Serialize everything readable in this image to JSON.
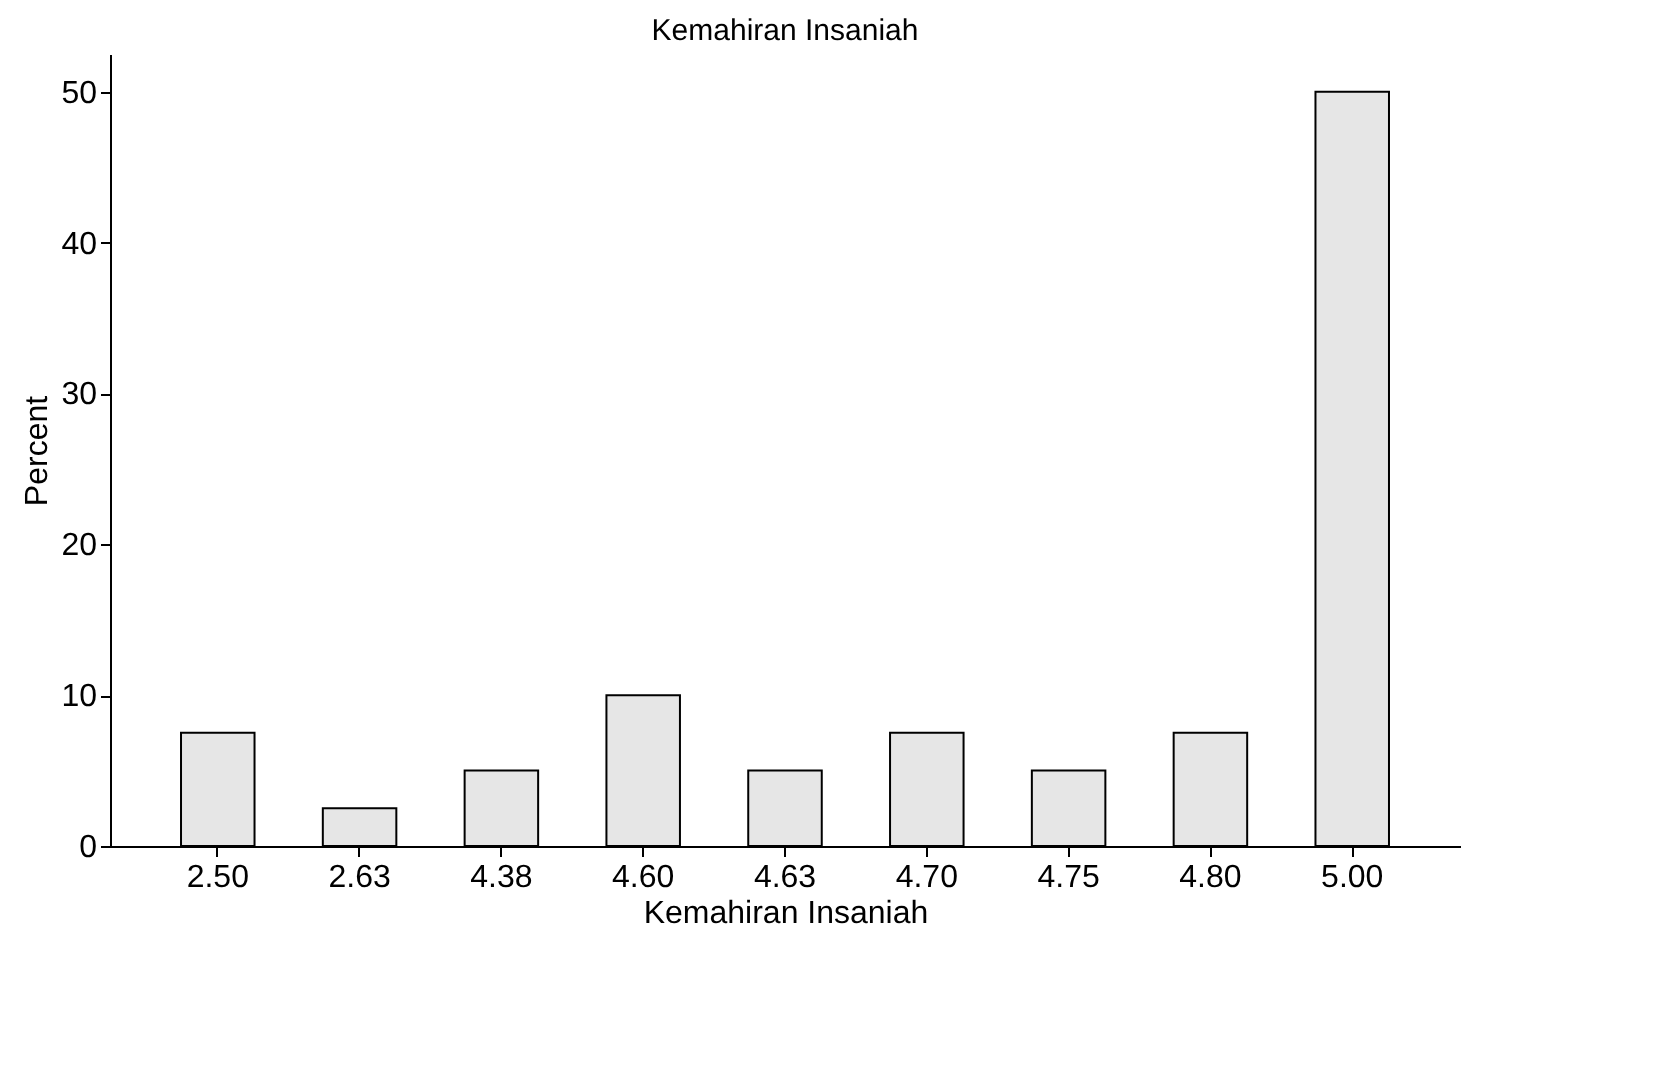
{
  "chart_data": {
    "type": "bar",
    "title": "Kemahiran Insaniah",
    "xlabel": "Kemahiran Insaniah",
    "ylabel": "Percent",
    "categories": [
      "2.50",
      "2.63",
      "4.38",
      "4.60",
      "4.63",
      "4.70",
      "4.75",
      "4.80",
      "5.00"
    ],
    "values": [
      7.5,
      2.5,
      5,
      10,
      5,
      7.5,
      5,
      7.5,
      50
    ],
    "color": "#e6e6e6",
    "ylim": [
      0,
      52.5
    ],
    "yticks": [
      0,
      10,
      20,
      30,
      40,
      50
    ],
    "grid": false
  }
}
